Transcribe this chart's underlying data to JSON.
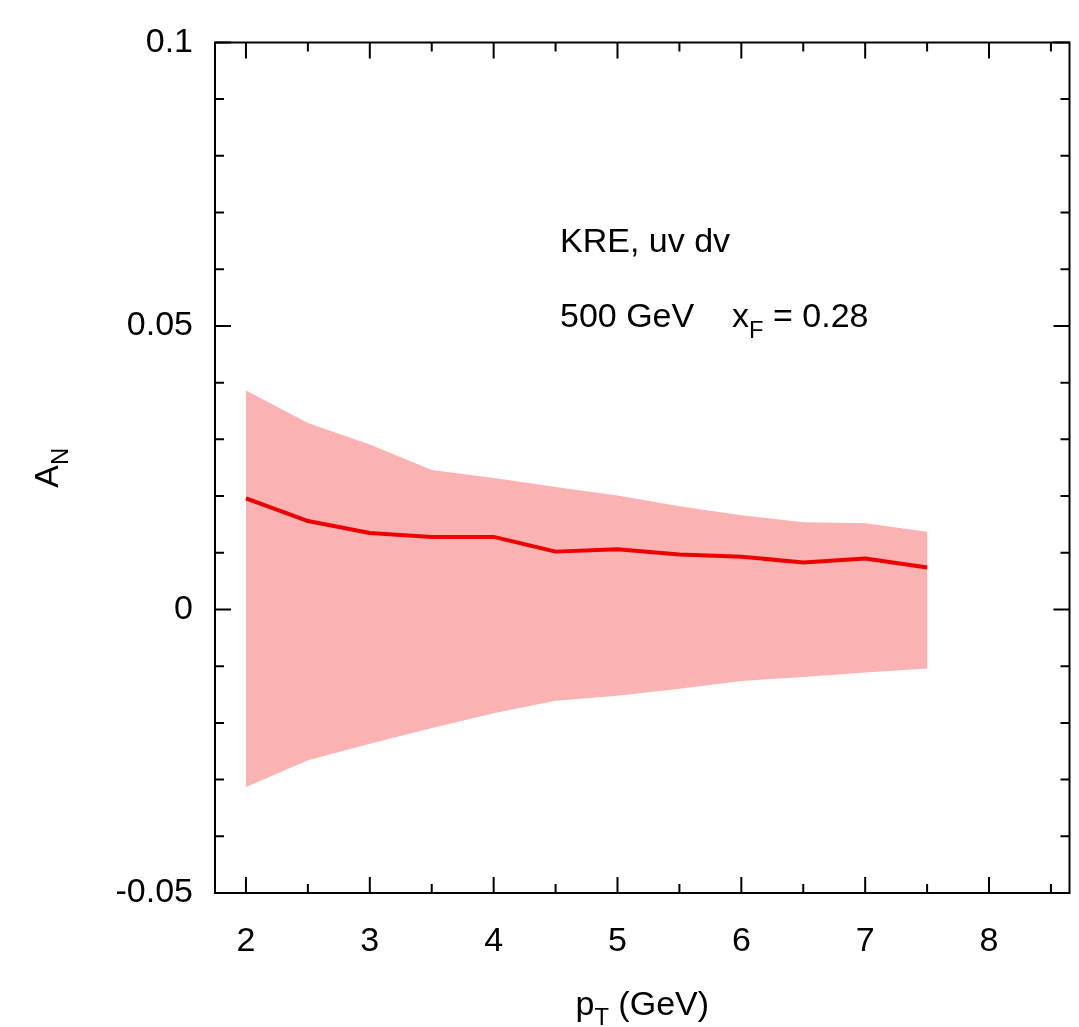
{
  "chart_data": {
    "type": "line",
    "xlabel": "p$_{T}$ (GeV)",
    "ylabel": "A$_{N}$",
    "annotations": [
      "KRE, uv dv",
      "500 GeV    x$_{F}$ = 0.28"
    ],
    "x": [
      2,
      2.5,
      3,
      3.5,
      4,
      4.5,
      5,
      5.5,
      6,
      6.5,
      7,
      7.5
    ],
    "series": [
      {
        "color": "#ee0000",
        "values": [
          0.0196,
          0.0156,
          0.0135,
          0.0128,
          0.0128,
          0.0102,
          0.0106,
          0.0097,
          0.0093,
          0.0083,
          0.009,
          0.0074
        ],
        "upper": [
          0.0386,
          0.0329,
          0.0291,
          0.0246,
          0.0232,
          0.0216,
          0.0201,
          0.0182,
          0.0166,
          0.0154,
          0.0152,
          0.0137
        ],
        "lower": [
          -0.0313,
          -0.0266,
          -0.0237,
          -0.0209,
          -0.0183,
          -0.0161,
          -0.0152,
          -0.014,
          -0.0126,
          -0.0119,
          -0.0111,
          -0.0104
        ]
      }
    ],
    "xlim": [
      1.75,
      8.65
    ],
    "ylim": [
      -0.05,
      0.1
    ],
    "xticks": [
      2,
      {
        "value": 2.5,
        "label": null
      },
      3,
      {
        "value": 3.5,
        "label": null
      },
      4,
      {
        "value": 4.5,
        "label": null
      },
      5,
      {
        "value": 5.5,
        "label": null
      },
      6,
      {
        "value": 6.5,
        "label": null
      },
      7,
      {
        "value": 7.5,
        "label": null
      },
      8,
      {
        "value": 8.5,
        "label": null
      }
    ],
    "yticks": [
      -0.05,
      {
        "value": -0.04,
        "label": null
      },
      {
        "value": -0.03,
        "label": null
      },
      {
        "value": -0.02,
        "label": null
      },
      {
        "value": -0.01,
        "label": null
      },
      0,
      {
        "value": 0.01,
        "label": null
      },
      {
        "value": 0.02,
        "label": null
      },
      {
        "value": 0.03,
        "label": null
      },
      {
        "value": 0.04,
        "label": null
      },
      0.05,
      {
        "value": 0.06,
        "label": null
      },
      {
        "value": 0.07,
        "label": null
      },
      {
        "value": 0.08,
        "label": null
      },
      {
        "value": 0.09,
        "label": null
      },
      0.1
    ],
    "grid": false,
    "legend": false,
    "marker": "none",
    "line_style": "solid"
  }
}
